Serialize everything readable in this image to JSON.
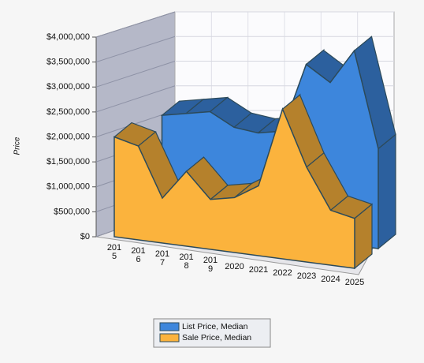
{
  "chart_data": {
    "type": "area3d",
    "y_label": "Price",
    "categories": [
      "2015",
      "2016",
      "2017",
      "2018",
      "2019",
      "2020",
      "2021",
      "2022",
      "2023",
      "2024",
      "2025"
    ],
    "series": [
      {
        "name": "List Price, Median",
        "color": "#3d86dc",
        "values": [
          null,
          2100000,
          2200000,
          2300000,
          2050000,
          2000000,
          2100000,
          3500000,
          3200000,
          3900000,
          2000000
        ]
      },
      {
        "name": "Sale Price, Median",
        "color": "#fbb33d",
        "values": [
          2000000,
          1880000,
          900000,
          1500000,
          1000000,
          1100000,
          1400000,
          3000000,
          1900000,
          1100000,
          1000000
        ]
      }
    ],
    "ylim": [
      0,
      4000000
    ],
    "yticks": [
      {
        "value": 0,
        "label": "$0"
      },
      {
        "value": 500000,
        "label": "$500,000"
      },
      {
        "value": 1000000,
        "label": "$1,000,000"
      },
      {
        "value": 1500000,
        "label": "$1,500,000"
      },
      {
        "value": 2000000,
        "label": "$2,000,000"
      },
      {
        "value": 2500000,
        "label": "$2,500,000"
      },
      {
        "value": 3000000,
        "label": "$3,000,000"
      },
      {
        "value": 3500000,
        "label": "$3,500,000"
      },
      {
        "value": 4000000,
        "label": "$4,000,000"
      }
    ],
    "grid": true
  }
}
